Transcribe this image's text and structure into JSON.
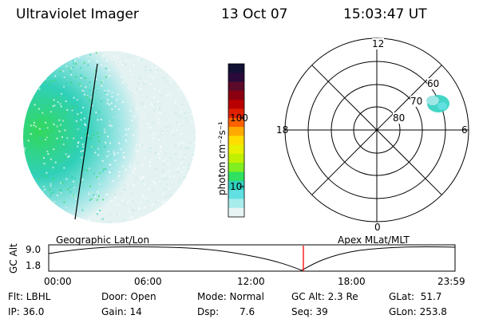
{
  "header": {
    "title": "Ultraviolet Imager",
    "date": "13 Oct 07",
    "time": "15:03:47 UT"
  },
  "colorbar": {
    "unit_label": "photon cm⁻²s⁻¹",
    "ticks": [
      "100",
      "10"
    ],
    "stops": [
      "#111133",
      "#2a0a3a",
      "#5c0a2a",
      "#8a0010",
      "#b80000",
      "#e02000",
      "#ff6000",
      "#ffaa00",
      "#ffdd00",
      "#e6f000",
      "#bff000",
      "#80ee20",
      "#30e060",
      "#30d0c0",
      "#60e0e0",
      "#a8ecec",
      "#e8f4f4"
    ]
  },
  "polar": {
    "lat_labels": [
      "60",
      "70",
      "80"
    ],
    "mlt_labels": {
      "top": "12",
      "left": "18",
      "right": "6",
      "bottom": "0"
    }
  },
  "map_labels": {
    "left": "Geographic Lat/Lon",
    "right": "Apex MLat/MLT"
  },
  "timeline": {
    "axis_label": "GC Alt",
    "y_ticks": [
      "9.0",
      "1.8"
    ],
    "x_ticks": [
      "00:00",
      "06:00",
      "12:00",
      "18:00",
      "23:59"
    ],
    "marker_color": "#ff0000"
  },
  "info": {
    "flt": "Flt: LBHL",
    "ip": "IP: 36.0",
    "door": "Door: Open",
    "gain": "Gain: 14",
    "mode": "Mode: Normal",
    "dsp_label": "Dsp:",
    "dsp_value": "7.6",
    "gcalt": "GC Alt: 2.3 Re",
    "seq": "Seq: 39",
    "glat": "GLat:  51.7",
    "glon": "GLon: 253.8"
  }
}
